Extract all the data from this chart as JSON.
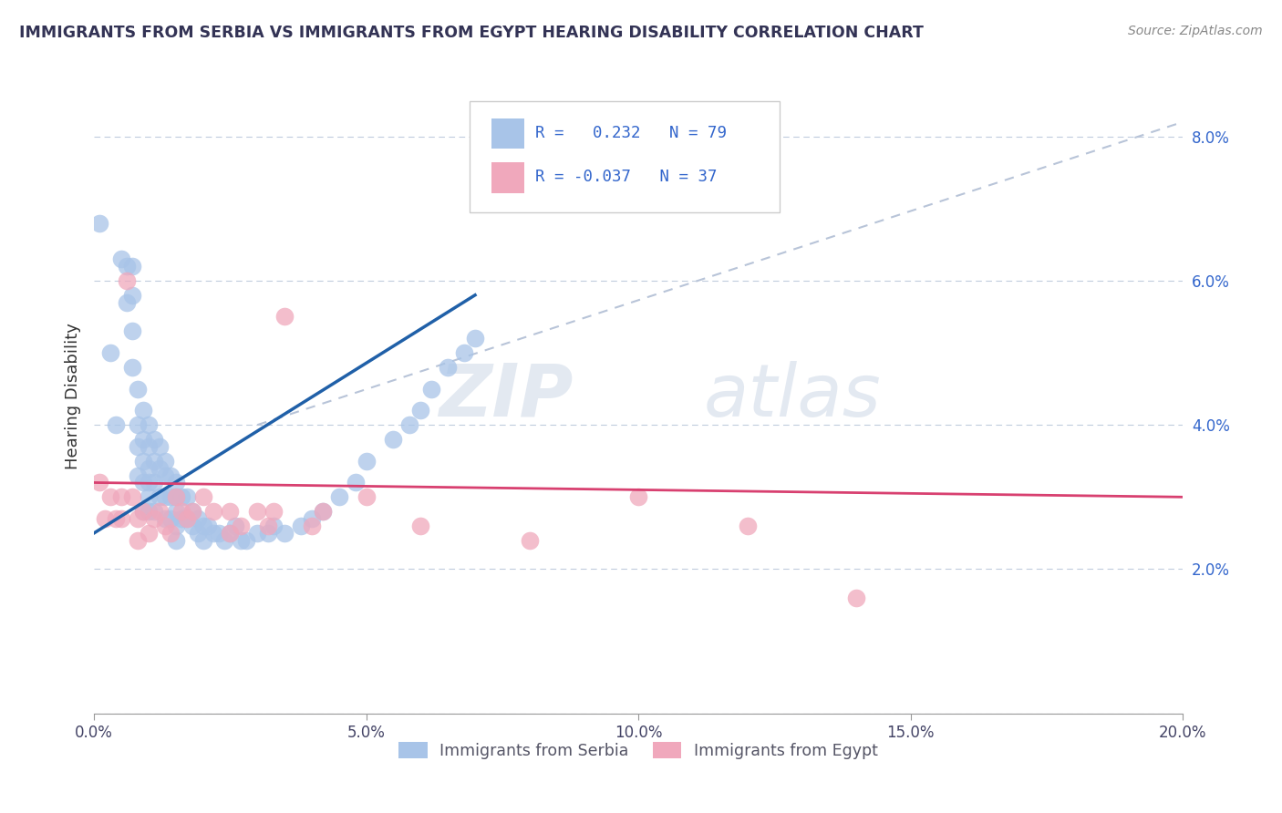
{
  "title": "IMMIGRANTS FROM SERBIA VS IMMIGRANTS FROM EGYPT HEARING DISABILITY CORRELATION CHART",
  "source": "Source: ZipAtlas.com",
  "ylabel": "Hearing Disability",
  "xlim": [
    0.0,
    0.2
  ],
  "ylim": [
    0.0,
    0.088
  ],
  "xtick_vals": [
    0.0,
    0.05,
    0.1,
    0.15,
    0.2
  ],
  "ytick_vals": [
    0.0,
    0.02,
    0.04,
    0.06,
    0.08
  ],
  "ytick_labels": [
    "",
    "2.0%",
    "4.0%",
    "6.0%",
    "8.0%"
  ],
  "serbia_color": "#a8c4e8",
  "egypt_color": "#f0a8bc",
  "serbia_line_color": "#2060a8",
  "egypt_line_color": "#d84070",
  "trendline_dash_color": "#b8c4d8",
  "yaxis_label_color": "#3366cc",
  "R_serbia": 0.232,
  "N_serbia": 79,
  "R_egypt": -0.037,
  "N_egypt": 37,
  "legend_serbia": "Immigrants from Serbia",
  "legend_egypt": "Immigrants from Egypt",
  "watermark_zip": "ZIP",
  "watermark_atlas": "atlas",
  "serbia_x": [
    0.001,
    0.003,
    0.004,
    0.005,
    0.006,
    0.006,
    0.007,
    0.007,
    0.007,
    0.007,
    0.008,
    0.008,
    0.008,
    0.008,
    0.009,
    0.009,
    0.009,
    0.009,
    0.009,
    0.01,
    0.01,
    0.01,
    0.01,
    0.01,
    0.01,
    0.011,
    0.011,
    0.011,
    0.011,
    0.012,
    0.012,
    0.012,
    0.013,
    0.013,
    0.013,
    0.013,
    0.014,
    0.014,
    0.014,
    0.015,
    0.015,
    0.015,
    0.015,
    0.015,
    0.016,
    0.016,
    0.017,
    0.017,
    0.018,
    0.018,
    0.019,
    0.019,
    0.02,
    0.02,
    0.021,
    0.022,
    0.023,
    0.024,
    0.025,
    0.026,
    0.027,
    0.028,
    0.03,
    0.032,
    0.033,
    0.035,
    0.038,
    0.04,
    0.042,
    0.045,
    0.048,
    0.05,
    0.055,
    0.058,
    0.06,
    0.062,
    0.065,
    0.068,
    0.07
  ],
  "serbia_y": [
    0.068,
    0.05,
    0.04,
    0.063,
    0.062,
    0.057,
    0.062,
    0.058,
    0.053,
    0.048,
    0.045,
    0.04,
    0.037,
    0.033,
    0.042,
    0.038,
    0.035,
    0.032,
    0.028,
    0.04,
    0.037,
    0.034,
    0.032,
    0.03,
    0.028,
    0.038,
    0.035,
    0.032,
    0.028,
    0.037,
    0.034,
    0.03,
    0.035,
    0.033,
    0.03,
    0.027,
    0.033,
    0.03,
    0.027,
    0.032,
    0.03,
    0.028,
    0.026,
    0.024,
    0.03,
    0.027,
    0.03,
    0.027,
    0.028,
    0.026,
    0.027,
    0.025,
    0.026,
    0.024,
    0.026,
    0.025,
    0.025,
    0.024,
    0.025,
    0.026,
    0.024,
    0.024,
    0.025,
    0.025,
    0.026,
    0.025,
    0.026,
    0.027,
    0.028,
    0.03,
    0.032,
    0.035,
    0.038,
    0.04,
    0.042,
    0.045,
    0.048,
    0.05,
    0.052
  ],
  "egypt_x": [
    0.001,
    0.002,
    0.003,
    0.004,
    0.005,
    0.005,
    0.006,
    0.007,
    0.008,
    0.008,
    0.009,
    0.01,
    0.011,
    0.012,
    0.013,
    0.014,
    0.015,
    0.016,
    0.017,
    0.018,
    0.02,
    0.022,
    0.025,
    0.025,
    0.027,
    0.03,
    0.032,
    0.033,
    0.035,
    0.04,
    0.042,
    0.05,
    0.06,
    0.08,
    0.1,
    0.12,
    0.14
  ],
  "egypt_y": [
    0.032,
    0.027,
    0.03,
    0.027,
    0.03,
    0.027,
    0.06,
    0.03,
    0.027,
    0.024,
    0.028,
    0.025,
    0.027,
    0.028,
    0.026,
    0.025,
    0.03,
    0.028,
    0.027,
    0.028,
    0.03,
    0.028,
    0.028,
    0.025,
    0.026,
    0.028,
    0.026,
    0.028,
    0.055,
    0.026,
    0.028,
    0.03,
    0.026,
    0.024,
    0.03,
    0.026,
    0.016
  ]
}
